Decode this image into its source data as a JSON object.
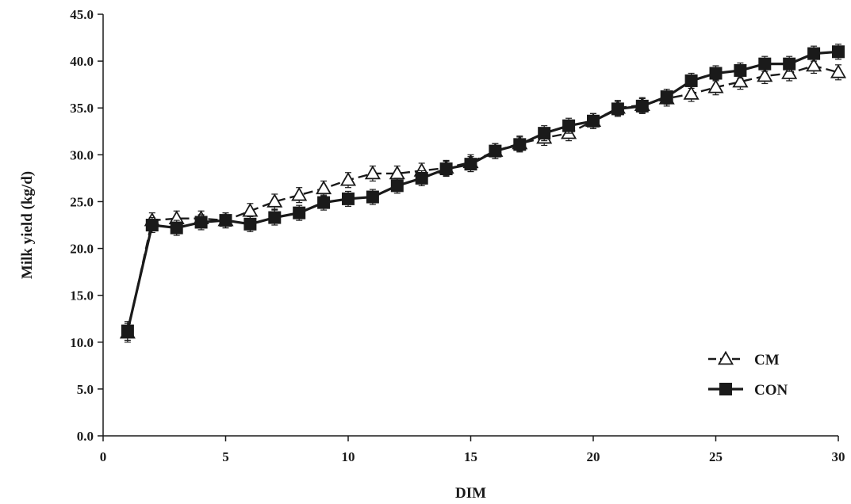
{
  "chart_data": {
    "type": "line",
    "title": "",
    "xlabel": "DIM",
    "ylabel": "Milk yield (kg/d)",
    "xlim": [
      0,
      30
    ],
    "ylim": [
      0,
      45
    ],
    "xticks": [
      "0",
      "5",
      "10",
      "15",
      "20",
      "25",
      "30"
    ],
    "yticks": [
      "0.0",
      "5.0",
      "10.0",
      "15.0",
      "20.0",
      "25.0",
      "30.0",
      "35.0",
      "40.0",
      "45.0"
    ],
    "grid": false,
    "legend_position": "bottom-right",
    "x": [
      1,
      2,
      3,
      4,
      5,
      6,
      7,
      8,
      9,
      10,
      11,
      12,
      13,
      14,
      15,
      16,
      17,
      18,
      19,
      20,
      21,
      22,
      23,
      24,
      25,
      26,
      27,
      28,
      29,
      30
    ],
    "series": [
      {
        "name": "CM",
        "style": "dashed",
        "marker": "open-triangle",
        "color": "#1a1a1a",
        "values": [
          11.0,
          23.0,
          23.2,
          23.2,
          23.0,
          24.0,
          25.0,
          25.7,
          26.4,
          27.3,
          28.0,
          28.0,
          28.3,
          28.6,
          29.2,
          30.4,
          31.2,
          31.8,
          32.3,
          33.6,
          35.0,
          35.3,
          36.0,
          36.5,
          37.2,
          37.8,
          38.4,
          38.7,
          39.5,
          38.8
        ],
        "errors": [
          1.0,
          0.8,
          0.8,
          0.8,
          0.8,
          0.8,
          0.8,
          0.8,
          0.8,
          0.8,
          0.8,
          0.8,
          0.8,
          0.8,
          0.8,
          0.8,
          0.8,
          0.8,
          0.8,
          0.8,
          0.8,
          0.8,
          0.8,
          0.8,
          0.8,
          0.8,
          0.8,
          0.8,
          0.8,
          0.8
        ]
      },
      {
        "name": "CON",
        "style": "solid",
        "marker": "filled-square",
        "color": "#1a1a1a",
        "values": [
          11.2,
          22.5,
          22.2,
          22.8,
          23.0,
          22.6,
          23.3,
          23.8,
          24.9,
          25.3,
          25.5,
          26.7,
          27.5,
          28.5,
          29.0,
          30.4,
          31.1,
          32.3,
          33.1,
          33.6,
          34.9,
          35.2,
          36.2,
          37.9,
          38.7,
          39.0,
          39.7,
          39.7,
          40.8,
          41.0
        ],
        "errors": [
          1.0,
          0.8,
          0.8,
          0.8,
          0.8,
          0.8,
          0.8,
          0.8,
          0.8,
          0.8,
          0.8,
          0.8,
          0.8,
          0.8,
          0.8,
          0.8,
          0.8,
          0.8,
          0.8,
          0.8,
          0.8,
          0.8,
          0.8,
          0.8,
          0.8,
          0.8,
          0.8,
          0.8,
          0.8,
          0.8
        ]
      }
    ]
  }
}
